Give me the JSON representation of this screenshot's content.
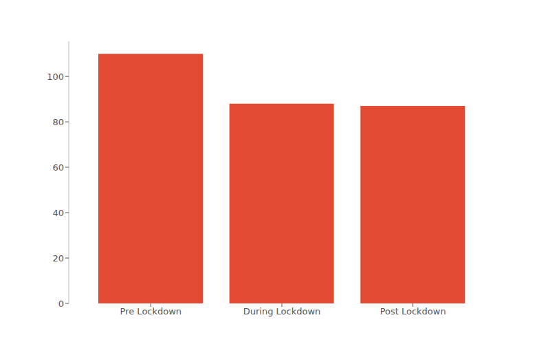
{
  "chart_data": {
    "type": "bar",
    "categories": [
      "Pre Lockdown",
      "During Lockdown",
      "Post Lockdown"
    ],
    "values": [
      110,
      88,
      87
    ],
    "color": "#e24a33",
    "ylim": [
      0,
      115.5
    ],
    "yticks": [
      0,
      20,
      40,
      60,
      80,
      100
    ],
    "grid": false
  }
}
